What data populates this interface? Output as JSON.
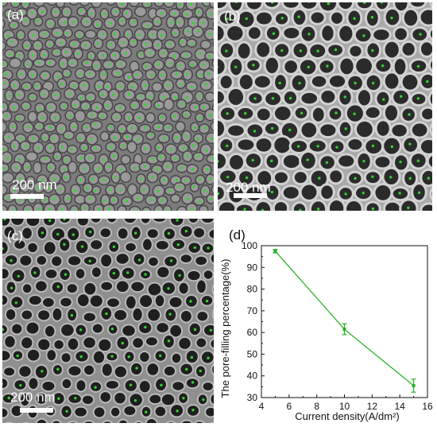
{
  "panels": {
    "a": {
      "label": "(a)",
      "scale": "200 nm"
    },
    "b": {
      "label": "(b)",
      "scale": "200 nm"
    },
    "c": {
      "label": "(c)",
      "scale": "200 nm"
    },
    "d": {
      "label": "(d)"
    }
  },
  "colors": {
    "marker": "#2fd42f",
    "line": "#22b222",
    "sem_dark": "#2a2a2a"
  },
  "chart_data": {
    "type": "line",
    "title": "",
    "xlabel": "Current density(A/dm²)",
    "ylabel": "The pore-filling percentage(%)",
    "xlim": [
      4,
      16
    ],
    "ylim": [
      30,
      100
    ],
    "xticks": [
      4,
      6,
      8,
      10,
      12,
      14,
      16
    ],
    "yticks": [
      30,
      40,
      50,
      60,
      70,
      80,
      90,
      100
    ],
    "x": [
      5,
      10,
      15
    ],
    "y": [
      97.5,
      61.5,
      35.5
    ],
    "yerr": [
      0.8,
      2.5,
      3.0
    ],
    "grid": false
  }
}
